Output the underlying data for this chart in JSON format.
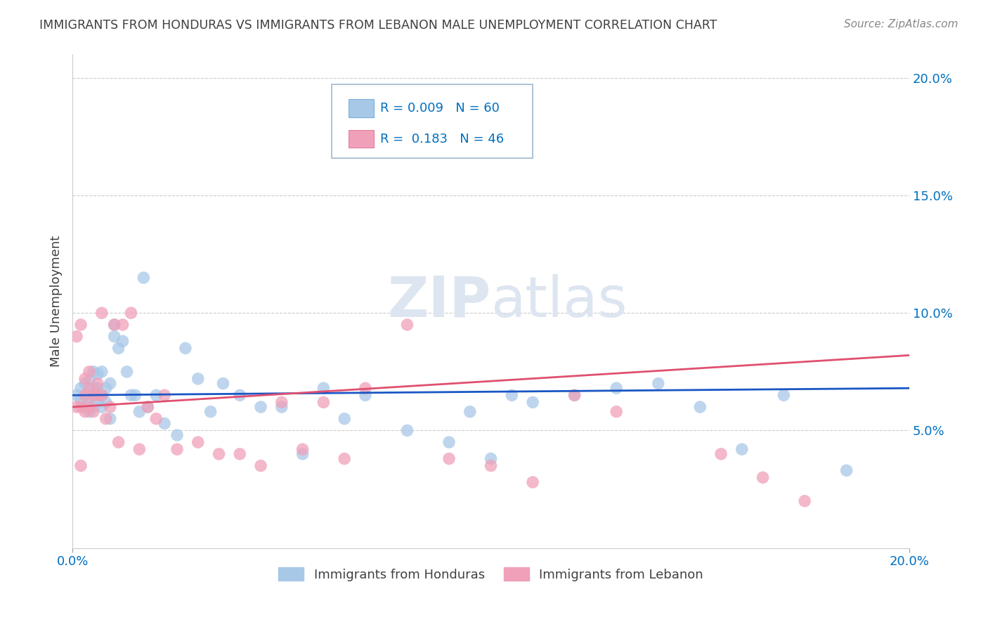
{
  "title": "IMMIGRANTS FROM HONDURAS VS IMMIGRANTS FROM LEBANON MALE UNEMPLOYMENT CORRELATION CHART",
  "source": "Source: ZipAtlas.com",
  "ylabel": "Male Unemployment",
  "xlim": [
    0.0,
    0.2
  ],
  "ylim": [
    0.0,
    0.21
  ],
  "yticks": [
    0.05,
    0.1,
    0.15,
    0.2
  ],
  "ytick_labels": [
    "5.0%",
    "10.0%",
    "15.0%",
    "20.0%"
  ],
  "xticks": [
    0.0,
    0.2
  ],
  "xtick_labels": [
    "0.0%",
    "20.0%"
  ],
  "series1_label": "Immigrants from Honduras",
  "series1_color": "#a8c8e8",
  "series1_R": "0.009",
  "series1_N": "60",
  "series2_label": "Immigrants from Lebanon",
  "series2_color": "#f0a0b8",
  "series2_R": "0.183",
  "series2_N": "46",
  "legend_R_color": "#0070c0",
  "trend1_color": "#1a56c4",
  "trend2_color": "#e05070",
  "background_color": "#ffffff",
  "grid_color": "#cccccc",
  "title_color": "#404040",
  "watermark_color": "#dde6f0",
  "series1_x": [
    0.001,
    0.002,
    0.002,
    0.003,
    0.003,
    0.003,
    0.004,
    0.004,
    0.004,
    0.005,
    0.005,
    0.005,
    0.005,
    0.006,
    0.006,
    0.006,
    0.007,
    0.007,
    0.007,
    0.008,
    0.008,
    0.009,
    0.009,
    0.01,
    0.01,
    0.011,
    0.012,
    0.013,
    0.014,
    0.015,
    0.016,
    0.017,
    0.018,
    0.02,
    0.022,
    0.025,
    0.027,
    0.03,
    0.033,
    0.036,
    0.04,
    0.045,
    0.05,
    0.055,
    0.06,
    0.065,
    0.07,
    0.08,
    0.09,
    0.095,
    0.1,
    0.105,
    0.11,
    0.12,
    0.13,
    0.14,
    0.15,
    0.16,
    0.17,
    0.185
  ],
  "series1_y": [
    0.065,
    0.068,
    0.063,
    0.07,
    0.065,
    0.06,
    0.064,
    0.071,
    0.058,
    0.06,
    0.065,
    0.075,
    0.068,
    0.062,
    0.068,
    0.074,
    0.06,
    0.065,
    0.075,
    0.062,
    0.068,
    0.055,
    0.07,
    0.09,
    0.095,
    0.085,
    0.088,
    0.075,
    0.065,
    0.065,
    0.058,
    0.115,
    0.06,
    0.065,
    0.053,
    0.048,
    0.085,
    0.072,
    0.058,
    0.07,
    0.065,
    0.06,
    0.06,
    0.04,
    0.068,
    0.055,
    0.065,
    0.05,
    0.045,
    0.058,
    0.038,
    0.065,
    0.062,
    0.065,
    0.068,
    0.07,
    0.06,
    0.042,
    0.065,
    0.033
  ],
  "series2_x": [
    0.001,
    0.001,
    0.002,
    0.002,
    0.002,
    0.003,
    0.003,
    0.003,
    0.004,
    0.004,
    0.004,
    0.005,
    0.005,
    0.006,
    0.006,
    0.007,
    0.007,
    0.008,
    0.009,
    0.01,
    0.011,
    0.012,
    0.014,
    0.016,
    0.018,
    0.02,
    0.022,
    0.025,
    0.03,
    0.035,
    0.04,
    0.045,
    0.05,
    0.055,
    0.06,
    0.065,
    0.07,
    0.08,
    0.09,
    0.1,
    0.11,
    0.12,
    0.13,
    0.155,
    0.165,
    0.175
  ],
  "series2_y": [
    0.09,
    0.06,
    0.035,
    0.06,
    0.095,
    0.058,
    0.065,
    0.072,
    0.06,
    0.068,
    0.075,
    0.058,
    0.065,
    0.07,
    0.065,
    0.065,
    0.1,
    0.055,
    0.06,
    0.095,
    0.045,
    0.095,
    0.1,
    0.042,
    0.06,
    0.055,
    0.065,
    0.042,
    0.045,
    0.04,
    0.04,
    0.035,
    0.062,
    0.042,
    0.062,
    0.038,
    0.068,
    0.095,
    0.038,
    0.035,
    0.028,
    0.065,
    0.058,
    0.04,
    0.03,
    0.02
  ],
  "trend1_x": [
    0.0,
    0.2
  ],
  "trend1_y": [
    0.065,
    0.068
  ],
  "trend2_x": [
    0.0,
    0.2
  ],
  "trend2_y": [
    0.06,
    0.082
  ]
}
